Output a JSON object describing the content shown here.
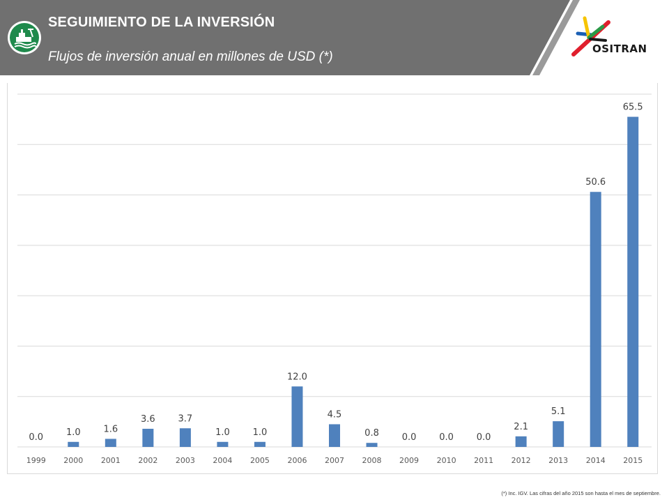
{
  "header": {
    "title": "SEGUIMIENTO DE LA INVERSIÓN",
    "subtitle": "Flujos de inversión anual en millones de USD (*)",
    "band_color": "#707070",
    "badge_color": "#1f8a4c",
    "logo_text": "OSITRAN",
    "logo_colors": [
      "#e01f2d",
      "#f6c400",
      "#2a9a47",
      "#1a5fb4"
    ]
  },
  "chart_data": {
    "type": "bar",
    "categories": [
      "1999",
      "2000",
      "2001",
      "2002",
      "2003",
      "2004",
      "2005",
      "2006",
      "2007",
      "2008",
      "2009",
      "2010",
      "2011",
      "2012",
      "2013",
      "2014",
      "2015"
    ],
    "values": [
      0.0,
      1.0,
      1.6,
      3.6,
      3.7,
      1.0,
      1.0,
      12.0,
      4.5,
      0.8,
      0.0,
      0.0,
      0.0,
      2.1,
      5.1,
      50.6,
      65.5
    ],
    "data_labels": [
      "0.0",
      "1.0",
      "1.6",
      "3.6",
      "3.7",
      "1.0",
      "1.0",
      "12.0",
      "4.5",
      "0.8",
      "0.0",
      "0.0",
      "0.0",
      "2.1",
      "5.1",
      "50.6",
      "65.5"
    ],
    "title": "",
    "xlabel": "",
    "ylabel": "",
    "ylim": [
      0,
      70
    ],
    "grid": true,
    "legend": "none",
    "bar_color": "#4f81bd"
  },
  "footnote": "(*) Inc. IGV. Las cifras del año 2015 son hasta el mes de septiembre."
}
